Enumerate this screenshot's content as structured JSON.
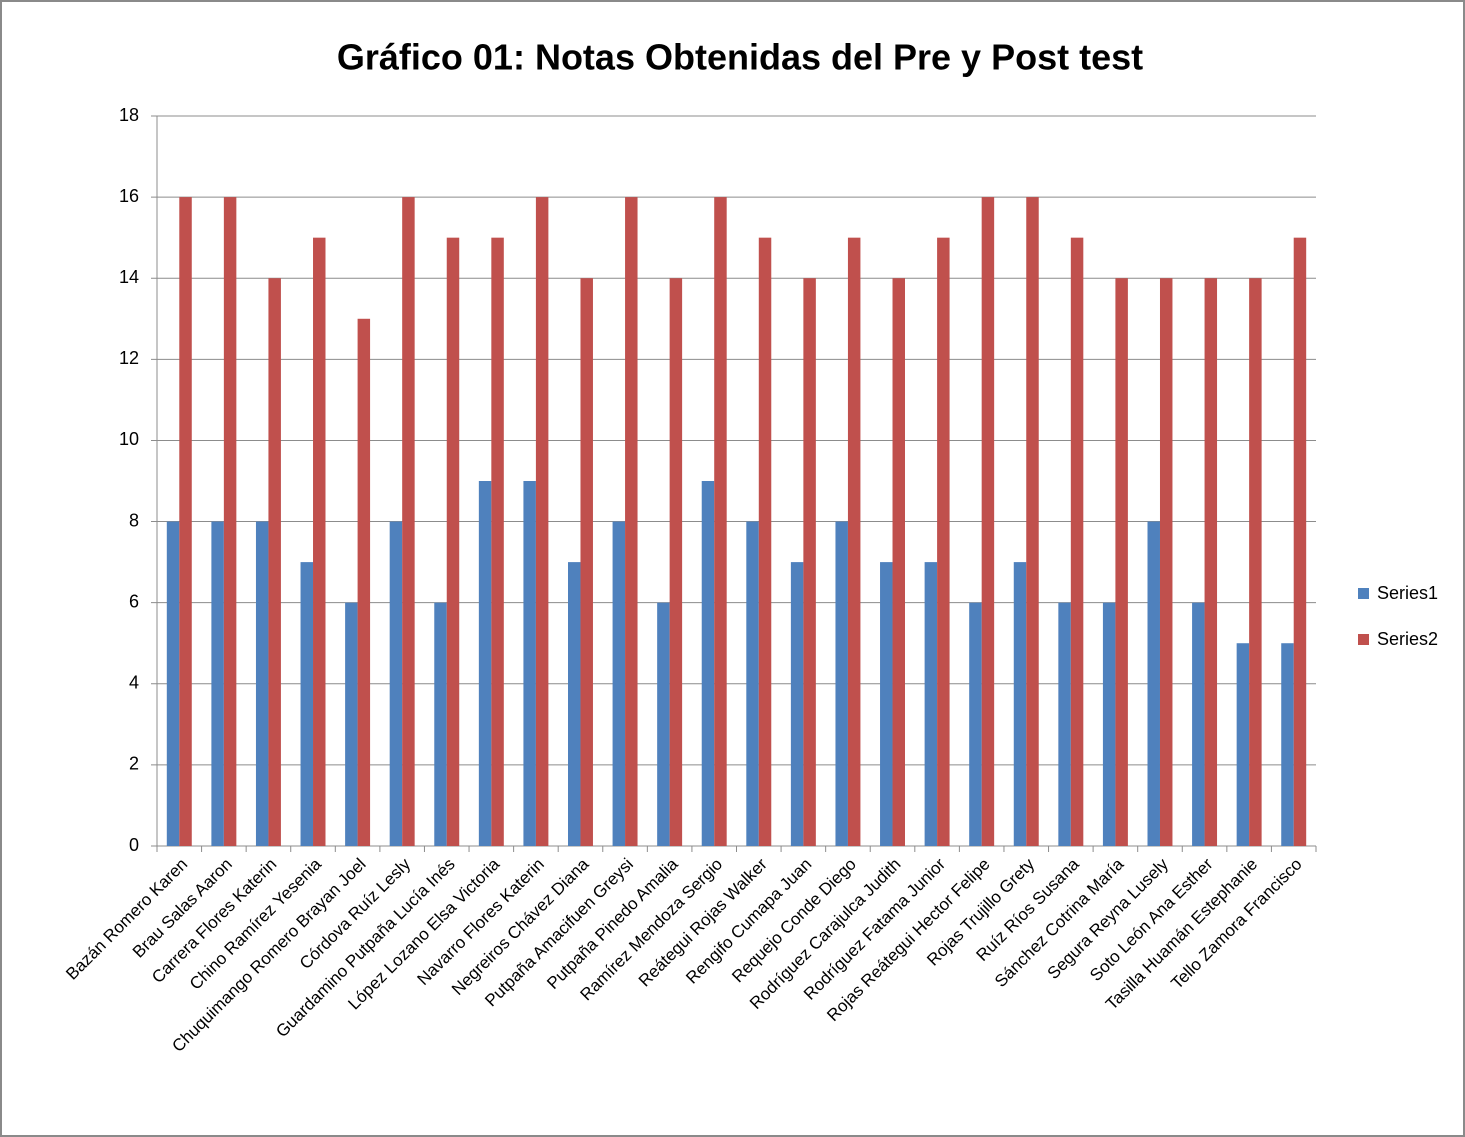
{
  "chart_data": {
    "type": "bar",
    "title": "Gráfico 01: Notas Obtenidas del Pre y Post test",
    "categories": [
      "Bazán Romero Karen",
      "Brau Salas Aaron",
      "Carrera Flores Katerin",
      "Chino Ramírez Yesenia",
      "Chuquimango Romero Brayan Joel",
      "Córdova Ruíz Lesly",
      "Guardamino Putpaña Lucía Inés",
      "López Lozano Elsa Victoria",
      "Navarro Flores Katerin",
      "Negreiros Chávez Diana",
      "Putpaña Amacifuen Greysi",
      "Putpaña Pinedo Amalia",
      "Ramírez Mendoza Sergio",
      "Reátegui  Rojas Walker",
      "Rengifo Cumapa Juan",
      "Requejo Conde Diego",
      "Rodríguez Carajulca Judith",
      "Rodríguez Fatama Junior",
      "Rojas Reátegui Hector Felipe",
      "Rojas Trujillo Grety",
      "Ruíz Ríos Susana",
      "Sánchez Cotrina María",
      "Segura Reyna Lusely",
      "Soto León Ana Esther",
      "Tasilla Huamán Estephanie",
      "Tello Zamora Francisco"
    ],
    "series": [
      {
        "name": "Series1",
        "color": "#4f81bd",
        "values": [
          8,
          8,
          8,
          7,
          6,
          8,
          6,
          9,
          9,
          7,
          8,
          6,
          9,
          8,
          7,
          8,
          7,
          7,
          6,
          7,
          6,
          6,
          8,
          6,
          5,
          5
        ]
      },
      {
        "name": "Series2",
        "color": "#c0504d",
        "values": [
          16,
          16,
          14,
          15,
          13,
          16,
          15,
          15,
          16,
          14,
          16,
          14,
          16,
          15,
          14,
          15,
          14,
          15,
          16,
          16,
          15,
          14,
          14,
          14,
          14,
          15
        ]
      }
    ],
    "ylim": [
      0,
      18
    ],
    "yticks": [
      0,
      2,
      4,
      6,
      8,
      10,
      12,
      14,
      16,
      18
    ],
    "grid": true,
    "legend": "right"
  }
}
